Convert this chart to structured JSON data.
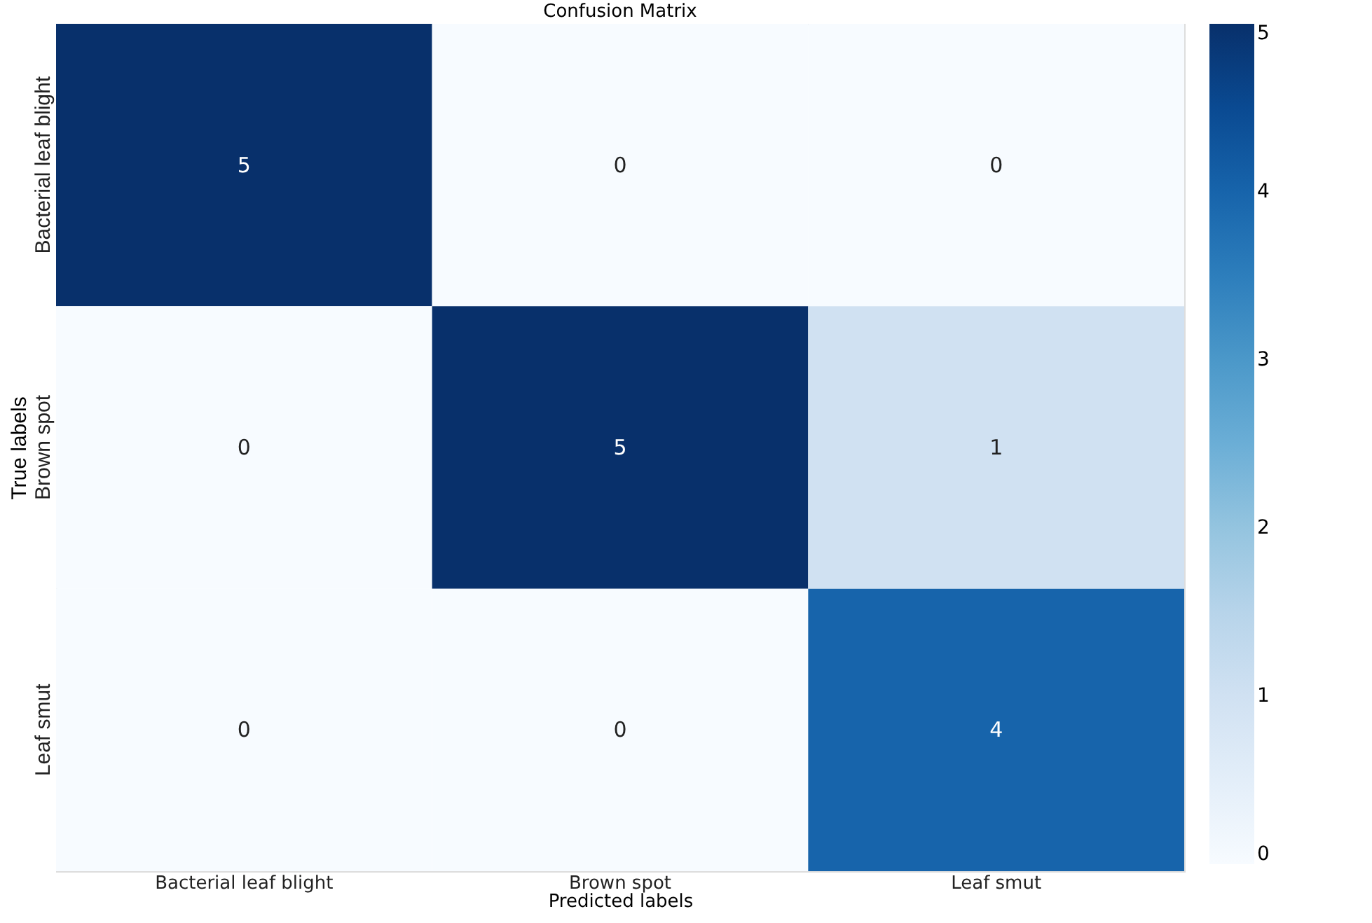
{
  "chart_data": {
    "type": "heatmap",
    "title": "Confusion Matrix",
    "xlabel": "Predicted labels",
    "ylabel": "True labels",
    "categories": [
      "Bacterial leaf blight",
      "Brown spot",
      "Leaf smut"
    ],
    "y_categories": [
      "Bacterial leaf blight",
      "Brown spot",
      "Leaf smut"
    ],
    "cells": [
      [
        5,
        0,
        0
      ],
      [
        0,
        5,
        1
      ],
      [
        0,
        0,
        4
      ]
    ],
    "clim": [
      0,
      5
    ],
    "cticks": [
      0,
      1,
      2,
      3,
      4,
      5
    ],
    "data_labels": true
  }
}
